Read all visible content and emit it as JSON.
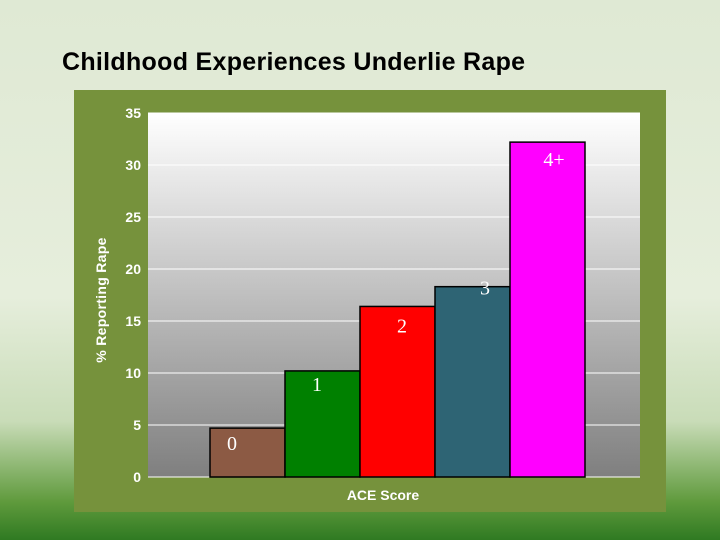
{
  "slide": {
    "title": "Childhood Experiences Underlie Rape"
  },
  "chart_data": {
    "type": "bar",
    "categories": [
      "0",
      "1",
      "2",
      "3",
      "4+"
    ],
    "values": [
      4.7,
      10.2,
      16.4,
      18.3,
      32.2
    ],
    "bar_colors": [
      "#8c5a44",
      "#008000",
      "#ff0000",
      "#2e6474",
      "#ff00ff"
    ],
    "xlabel": "ACE Score",
    "ylabel": "% Reporting Rape",
    "ylim": [
      0,
      35
    ],
    "yticks": [
      0,
      5,
      10,
      15,
      20,
      25,
      30,
      35
    ],
    "grid": true,
    "legend": "none",
    "frame_color": "#76923c"
  }
}
